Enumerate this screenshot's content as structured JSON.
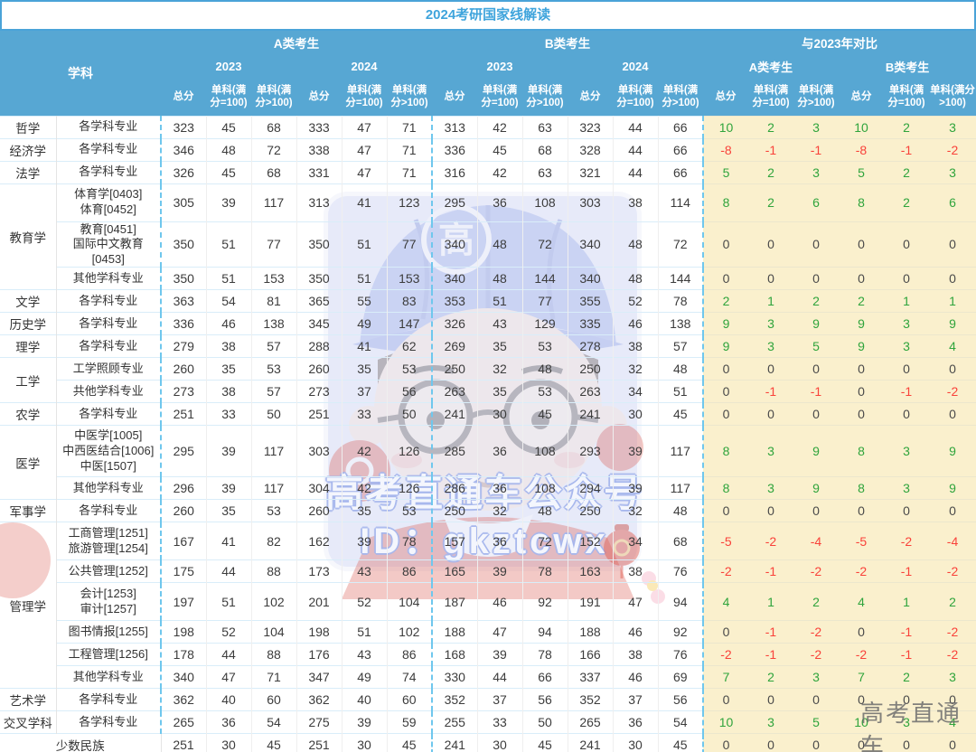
{
  "title": "2024考研国家线解读",
  "colors": {
    "accent": "#4aa3d8",
    "header_bg": "#57a7d3",
    "title_color": "#3fa4dc",
    "diff_bg": "#faf0cd",
    "positive_green": "#2fa43c",
    "negative_red": "#f9423a",
    "zero_dark": "#4a4a4a"
  },
  "header": {
    "subject": "学科",
    "groups": [
      "A类考生",
      "B类考生",
      "与2023年对比"
    ],
    "subgroups": [
      "2023",
      "2024",
      "2023",
      "2024",
      "A类考生",
      "B类考生"
    ],
    "metrics": [
      "总分",
      "单科(满分=100)",
      "单科(满分>100)"
    ]
  },
  "watermark": {
    "banner_line1": "高考直通车公众号",
    "banner_line2": "ID：gkztcwx",
    "corner_text": "高考直通车",
    "cap_glyph": "高"
  },
  "rows": [
    {
      "subject": "哲学",
      "rowspan": 1,
      "specialty": [
        "各学科专业"
      ],
      "lines": 1,
      "values": [
        323,
        45,
        68,
        333,
        47,
        71,
        313,
        42,
        63,
        323,
        44,
        66,
        10,
        2,
        3,
        10,
        2,
        3
      ]
    },
    {
      "subject": "经济学",
      "rowspan": 1,
      "specialty": [
        "各学科专业"
      ],
      "lines": 1,
      "values": [
        346,
        48,
        72,
        338,
        47,
        71,
        336,
        45,
        68,
        328,
        44,
        66,
        -8,
        -1,
        -1,
        -8,
        -1,
        -2
      ]
    },
    {
      "subject": "法学",
      "rowspan": 1,
      "specialty": [
        "各学科专业"
      ],
      "lines": 1,
      "values": [
        326,
        45,
        68,
        331,
        47,
        71,
        316,
        42,
        63,
        321,
        44,
        66,
        5,
        2,
        3,
        5,
        2,
        3
      ]
    },
    {
      "subject": "教育学",
      "rowspan": 3,
      "specialty": [
        "体育学[0403]",
        "体育[0452]"
      ],
      "lines": 2,
      "values": [
        305,
        39,
        117,
        313,
        41,
        123,
        295,
        36,
        108,
        303,
        38,
        114,
        8,
        2,
        6,
        8,
        2,
        6
      ]
    },
    {
      "subject": null,
      "specialty": [
        "教育[0451]",
        "国际中文教育[0453]"
      ],
      "lines": 2,
      "values": [
        350,
        51,
        77,
        350,
        51,
        77,
        340,
        48,
        72,
        340,
        48,
        72,
        0,
        0,
        0,
        0,
        0,
        0
      ]
    },
    {
      "subject": null,
      "specialty": [
        "其他学科专业"
      ],
      "lines": 1,
      "values": [
        350,
        51,
        153,
        350,
        51,
        153,
        340,
        48,
        144,
        340,
        48,
        144,
        0,
        0,
        0,
        0,
        0,
        0
      ]
    },
    {
      "subject": "文学",
      "rowspan": 1,
      "specialty": [
        "各学科专业"
      ],
      "lines": 1,
      "values": [
        363,
        54,
        81,
        365,
        55,
        83,
        353,
        51,
        77,
        355,
        52,
        78,
        2,
        1,
        2,
        2,
        1,
        1
      ]
    },
    {
      "subject": "历史学",
      "rowspan": 1,
      "specialty": [
        "各学科专业"
      ],
      "lines": 1,
      "values": [
        336,
        46,
        138,
        345,
        49,
        147,
        326,
        43,
        129,
        335,
        46,
        138,
        9,
        3,
        9,
        9,
        3,
        9
      ]
    },
    {
      "subject": "理学",
      "rowspan": 1,
      "specialty": [
        "各学科专业"
      ],
      "lines": 1,
      "values": [
        279,
        38,
        57,
        288,
        41,
        62,
        269,
        35,
        53,
        278,
        38,
        57,
        9,
        3,
        5,
        9,
        3,
        4
      ]
    },
    {
      "subject": "工学",
      "rowspan": 2,
      "specialty": [
        "工学照顾专业"
      ],
      "lines": 1,
      "values": [
        260,
        35,
        53,
        260,
        35,
        53,
        250,
        32,
        48,
        250,
        32,
        48,
        0,
        0,
        0,
        0,
        0,
        0
      ]
    },
    {
      "subject": null,
      "specialty": [
        "共他学科专业"
      ],
      "lines": 1,
      "values": [
        273,
        38,
        57,
        273,
        37,
        56,
        263,
        35,
        53,
        263,
        34,
        51,
        0,
        -1,
        -1,
        0,
        -1,
        -2
      ]
    },
    {
      "subject": "农学",
      "rowspan": 1,
      "specialty": [
        "各学科专业"
      ],
      "lines": 1,
      "values": [
        251,
        33,
        50,
        251,
        33,
        50,
        241,
        30,
        45,
        241,
        30,
        45,
        0,
        0,
        0,
        0,
        0,
        0
      ]
    },
    {
      "subject": "医学",
      "rowspan": 2,
      "specialty": [
        "中医学[1005]",
        "中西医结合[1006]",
        "中医[1507]"
      ],
      "lines": 3,
      "values": [
        295,
        39,
        117,
        303,
        42,
        126,
        285,
        36,
        108,
        293,
        39,
        117,
        8,
        3,
        9,
        8,
        3,
        9
      ]
    },
    {
      "subject": null,
      "specialty": [
        "其他学科专业"
      ],
      "lines": 1,
      "values": [
        296,
        39,
        117,
        304,
        42,
        126,
        286,
        36,
        108,
        294,
        39,
        117,
        8,
        3,
        9,
        8,
        3,
        9
      ]
    },
    {
      "subject": "军事学",
      "rowspan": 1,
      "specialty": [
        "各学科专业"
      ],
      "lines": 1,
      "values": [
        260,
        35,
        53,
        260,
        35,
        53,
        250,
        32,
        48,
        250,
        32,
        48,
        0,
        0,
        0,
        0,
        0,
        0
      ]
    },
    {
      "subject": "管理学",
      "rowspan": 6,
      "specialty": [
        "工商管理[1251]",
        "旅游管理[1254]"
      ],
      "lines": 2,
      "values": [
        167,
        41,
        82,
        162,
        39,
        78,
        157,
        36,
        72,
        152,
        34,
        68,
        -5,
        -2,
        -4,
        -5,
        -2,
        -4
      ]
    },
    {
      "subject": null,
      "specialty": [
        "公共管理[1252]"
      ],
      "lines": 1,
      "values": [
        175,
        44,
        88,
        173,
        43,
        86,
        165,
        39,
        78,
        163,
        38,
        76,
        -2,
        -1,
        -2,
        -2,
        -1,
        -2
      ]
    },
    {
      "subject": null,
      "specialty": [
        "会计[1253]",
        "审计[1257]"
      ],
      "lines": 2,
      "values": [
        197,
        51,
        102,
        201,
        52,
        104,
        187,
        46,
        92,
        191,
        47,
        94,
        4,
        1,
        2,
        4,
        1,
        2
      ]
    },
    {
      "subject": null,
      "specialty": [
        "图书情报[1255]"
      ],
      "lines": 1,
      "values": [
        198,
        52,
        104,
        198,
        51,
        102,
        188,
        47,
        94,
        188,
        46,
        92,
        0,
        -1,
        -2,
        0,
        -1,
        -2
      ]
    },
    {
      "subject": null,
      "specialty": [
        "工程管理[1256]"
      ],
      "lines": 1,
      "values": [
        178,
        44,
        88,
        176,
        43,
        86,
        168,
        39,
        78,
        166,
        38,
        76,
        -2,
        -1,
        -2,
        -2,
        -1,
        -2
      ]
    },
    {
      "subject": null,
      "specialty": [
        "其他学科专业"
      ],
      "lines": 1,
      "values": [
        340,
        47,
        71,
        347,
        49,
        74,
        330,
        44,
        66,
        337,
        46,
        69,
        7,
        2,
        3,
        7,
        2,
        3
      ]
    },
    {
      "subject": "艺术学",
      "rowspan": 1,
      "specialty": [
        "各学科专业"
      ],
      "lines": 1,
      "values": [
        362,
        40,
        60,
        362,
        40,
        60,
        352,
        37,
        56,
        352,
        37,
        56,
        0,
        0,
        0,
        0,
        0,
        0
      ]
    },
    {
      "subject": "交叉学科",
      "rowspan": 1,
      "specialty": [
        "各学科专业"
      ],
      "lines": 1,
      "values": [
        265,
        36,
        54,
        275,
        39,
        59,
        255,
        33,
        50,
        265,
        36,
        54,
        10,
        3,
        5,
        10,
        3,
        4
      ]
    },
    {
      "subject": "少数民族",
      "rowspan": 1,
      "colspan": 2,
      "specialty": null,
      "lines": 1,
      "values": [
        251,
        30,
        45,
        251,
        30,
        45,
        241,
        30,
        45,
        241,
        30,
        45,
        0,
        0,
        0,
        0,
        0,
        0
      ]
    }
  ]
}
